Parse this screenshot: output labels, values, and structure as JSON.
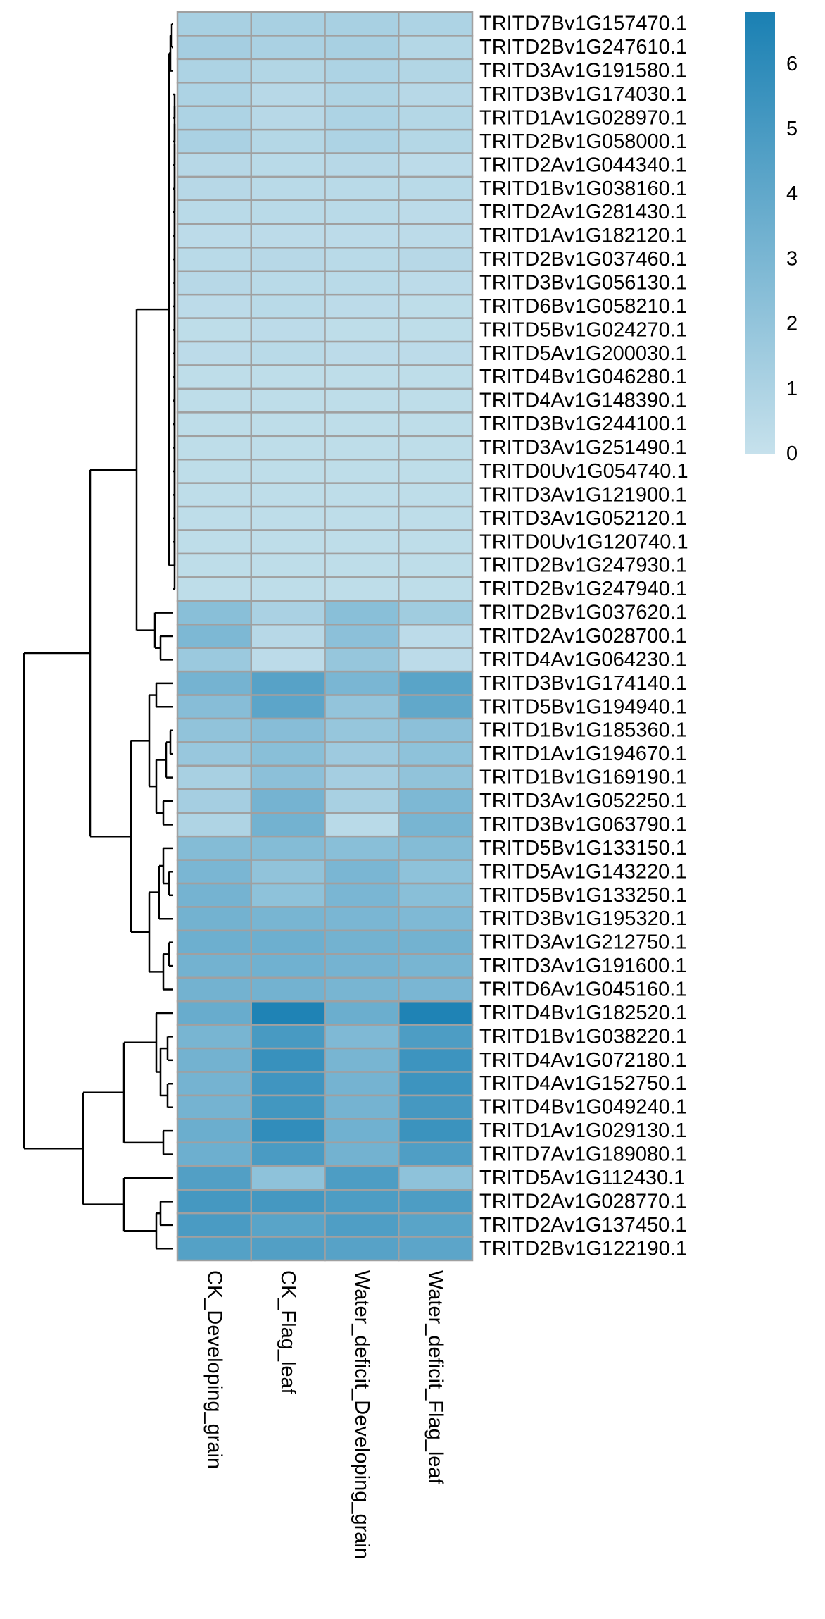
{
  "chart_data": {
    "type": "heatmap",
    "title": "",
    "xlabel": "",
    "ylabel": "",
    "columns": [
      "CK_Developing_grain",
      "CK_Flag_leaf",
      "Water_deficit_Developing_grain",
      "Water_deficit_Flag_leaf"
    ],
    "rows": [
      "TRITD7Bv1G157470.1",
      "TRITD2Bv1G247610.1",
      "TRITD3Av1G191580.1",
      "TRITD3Bv1G174030.1",
      "TRITD1Av1G028970.1",
      "TRITD2Bv1G058000.1",
      "TRITD2Av1G044340.1",
      "TRITD1Bv1G038160.1",
      "TRITD2Av1G281430.1",
      "TRITD1Av1G182120.1",
      "TRITD2Bv1G037460.1",
      "TRITD3Bv1G056130.1",
      "TRITD6Bv1G058210.1",
      "TRITD5Bv1G024270.1",
      "TRITD5Av1G200030.1",
      "TRITD4Bv1G046280.1",
      "TRITD4Av1G148390.1",
      "TRITD3Bv1G244100.1",
      "TRITD3Av1G251490.1",
      "TRITD0Uv1G054740.1",
      "TRITD3Av1G121900.1",
      "TRITD3Av1G052120.1",
      "TRITD0Uv1G120740.1",
      "TRITD2Bv1G247930.1",
      "TRITD2Bv1G247940.1",
      "TRITD2Bv1G037620.1",
      "TRITD2Av1G028700.1",
      "TRITD4Av1G064230.1",
      "TRITD3Bv1G174140.1",
      "TRITD5Bv1G194940.1",
      "TRITD1Bv1G185360.1",
      "TRITD1Av1G194670.1",
      "TRITD1Bv1G169190.1",
      "TRITD3Av1G052250.1",
      "TRITD3Bv1G063790.1",
      "TRITD5Bv1G133150.1",
      "TRITD5Av1G143220.1",
      "TRITD5Bv1G133250.1",
      "TRITD3Bv1G195320.1",
      "TRITD3Av1G212750.1",
      "TRITD3Av1G191600.1",
      "TRITD6Av1G045160.1",
      "TRITD4Bv1G182520.1",
      "TRITD1Bv1G038220.1",
      "TRITD4Av1G072180.1",
      "TRITD4Av1G152750.1",
      "TRITD4Bv1G049240.1",
      "TRITD1Av1G029130.1",
      "TRITD7Av1G189080.1",
      "TRITD5Av1G112430.1",
      "TRITD2Av1G028770.1",
      "TRITD2Av1G137450.1",
      "TRITD2Bv1G122190.1"
    ],
    "values": [
      [
        1.2,
        1.2,
        1.2,
        1.0
      ],
      [
        1.3,
        1.1,
        1.2,
        0.7
      ],
      [
        1.0,
        0.8,
        1.0,
        0.8
      ],
      [
        1.0,
        0.6,
        0.9,
        0.6
      ],
      [
        1.0,
        0.6,
        1.0,
        0.7
      ],
      [
        1.1,
        0.7,
        1.0,
        0.7
      ],
      [
        0.6,
        0.5,
        0.6,
        0.4
      ],
      [
        0.6,
        0.5,
        0.5,
        0.5
      ],
      [
        0.5,
        0.5,
        0.5,
        0.4
      ],
      [
        0.4,
        0.4,
        0.4,
        0.4
      ],
      [
        0.5,
        0.6,
        0.5,
        0.6
      ],
      [
        0.6,
        0.5,
        0.5,
        0.4
      ],
      [
        0.4,
        0.5,
        0.4,
        0.3
      ],
      [
        0.3,
        0.4,
        0.3,
        0.3
      ],
      [
        0.4,
        0.5,
        0.4,
        0.4
      ],
      [
        0.3,
        0.3,
        0.3,
        0.3
      ],
      [
        0.3,
        0.3,
        0.3,
        0.3
      ],
      [
        0.3,
        0.3,
        0.3,
        0.3
      ],
      [
        0.3,
        0.3,
        0.3,
        0.3
      ],
      [
        0.3,
        0.3,
        0.3,
        0.3
      ],
      [
        0.3,
        0.3,
        0.3,
        0.3
      ],
      [
        0.3,
        0.3,
        0.3,
        0.3
      ],
      [
        0.3,
        0.3,
        0.3,
        0.3
      ],
      [
        0.3,
        0.3,
        0.3,
        0.3
      ],
      [
        0.3,
        0.3,
        0.3,
        0.3
      ],
      [
        2.4,
        1.1,
        2.4,
        1.5
      ],
      [
        2.9,
        0.6,
        2.3,
        0.4
      ],
      [
        1.7,
        0.4,
        1.9,
        0.4
      ],
      [
        3.2,
        4.4,
        3.0,
        4.3
      ],
      [
        2.5,
        4.2,
        2.0,
        4.0
      ],
      [
        2.1,
        2.5,
        1.9,
        2.3
      ],
      [
        1.8,
        2.4,
        1.6,
        2.2
      ],
      [
        1.2,
        2.3,
        1.3,
        2.1
      ],
      [
        1.3,
        3.2,
        1.2,
        2.9
      ],
      [
        0.9,
        3.3,
        0.5,
        3.1
      ],
      [
        2.6,
        2.6,
        2.4,
        2.6
      ],
      [
        3.0,
        2.1,
        3.0,
        2.2
      ],
      [
        3.2,
        2.2,
        3.0,
        2.4
      ],
      [
        3.3,
        3.1,
        3.0,
        2.8
      ],
      [
        3.5,
        3.5,
        3.3,
        3.3
      ],
      [
        3.3,
        3.4,
        3.2,
        3.1
      ],
      [
        3.3,
        3.3,
        3.1,
        3.0
      ],
      [
        3.7,
        6.6,
        3.6,
        6.6
      ],
      [
        3.1,
        5.0,
        2.8,
        4.8
      ],
      [
        3.3,
        5.6,
        3.1,
        5.4
      ],
      [
        3.2,
        5.3,
        3.2,
        5.4
      ],
      [
        3.2,
        5.2,
        3.2,
        5.1
      ],
      [
        3.6,
        5.9,
        3.4,
        5.5
      ],
      [
        3.5,
        4.9,
        3.3,
        4.7
      ],
      [
        4.6,
        2.2,
        4.8,
        2.2
      ],
      [
        5.1,
        5.1,
        4.8,
        4.8
      ],
      [
        4.9,
        4.3,
        4.7,
        4.3
      ],
      [
        4.5,
        4.6,
        4.4,
        4.2
      ]
    ],
    "color_scale": {
      "low_color": "#c6e1ec",
      "high_color": "#1a80b3",
      "range": [
        0,
        6.8
      ],
      "ticks": [
        0,
        1,
        2,
        3,
        4,
        5,
        6
      ]
    },
    "cell_border_color": "#a0a0a0",
    "legend_position": "top-right",
    "row_dendrogram": "left",
    "grid": false
  }
}
